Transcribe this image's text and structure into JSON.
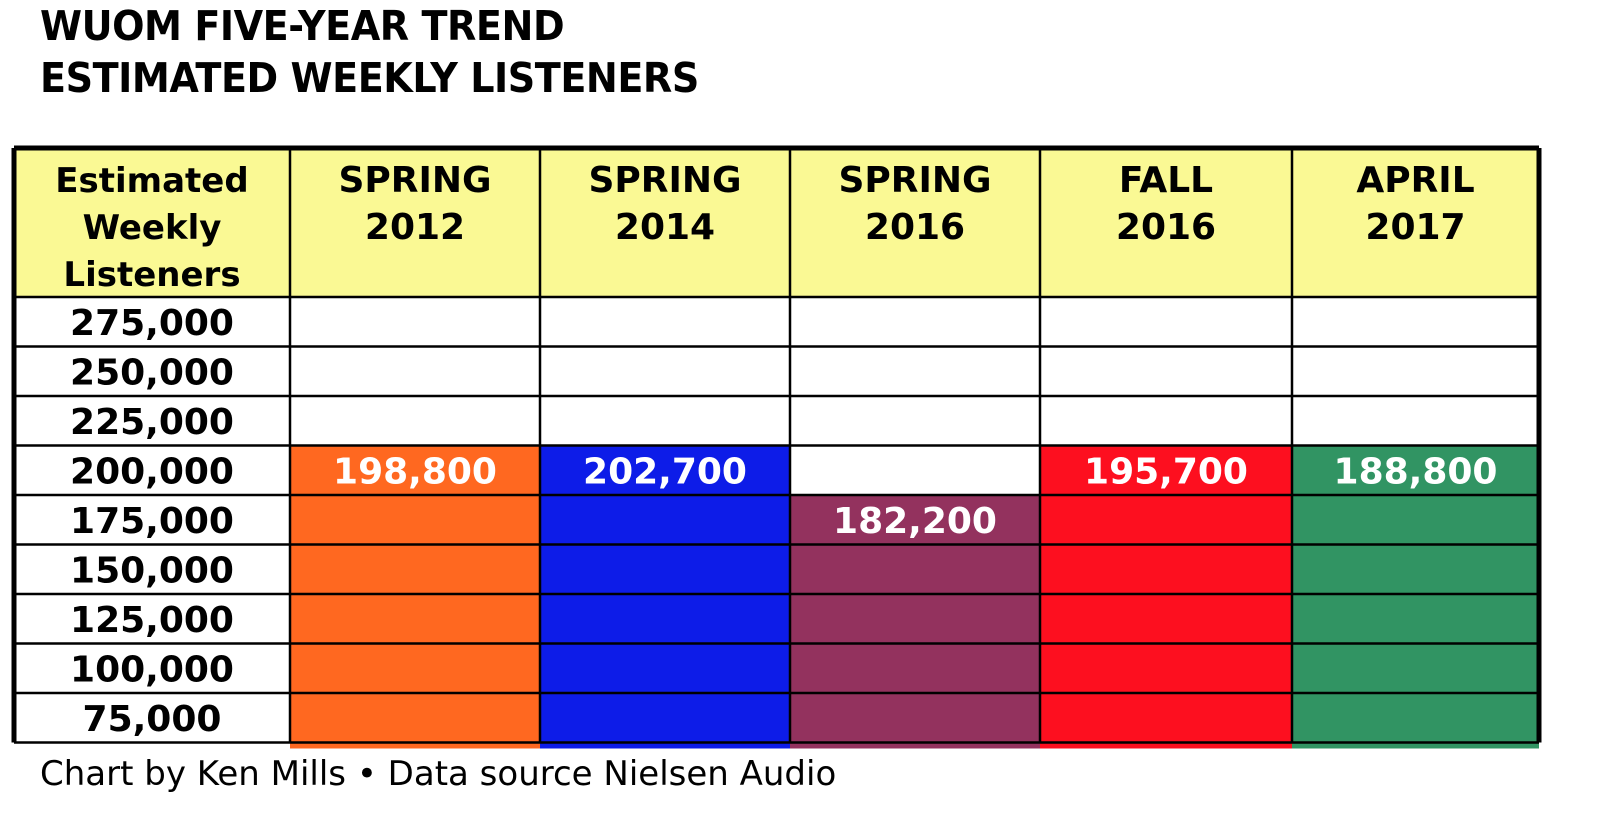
{
  "title_line1": "WUOM FIVE-YEAR TREND",
  "title_line2": "ESTIMATED WEEKLY LISTENERS",
  "footer": "Chart by Ken Mills • Data source Nielsen Audio",
  "chart_data": {
    "type": "bar",
    "row_header": [
      "Estimated",
      "Weekly",
      "Listeners"
    ],
    "y_ticks": [
      "275,000",
      "250,000",
      "225,000",
      "200,000",
      "175,000",
      "150,000",
      "125,000",
      "100,000",
      "75,000"
    ],
    "series": [
      {
        "name_lines": [
          "SPRING",
          "2012"
        ],
        "value": 198800,
        "label": "198,800",
        "color": "#ff6820"
      },
      {
        "name_lines": [
          "SPRING",
          "2014"
        ],
        "value": 202700,
        "label": "202,700",
        "color": "#0d1ce8"
      },
      {
        "name_lines": [
          "SPRING",
          "2016"
        ],
        "value": 182200,
        "label": "182,200",
        "color": "#93325e"
      },
      {
        "name_lines": [
          "FALL",
          "2016"
        ],
        "value": 195700,
        "label": "195,700",
        "color": "#fd0f1f"
      },
      {
        "name_lines": [
          "APRIL",
          "2017"
        ],
        "value": 188800,
        "label": "188,800",
        "color": "#319463"
      }
    ],
    "header_color": "#faf994"
  }
}
